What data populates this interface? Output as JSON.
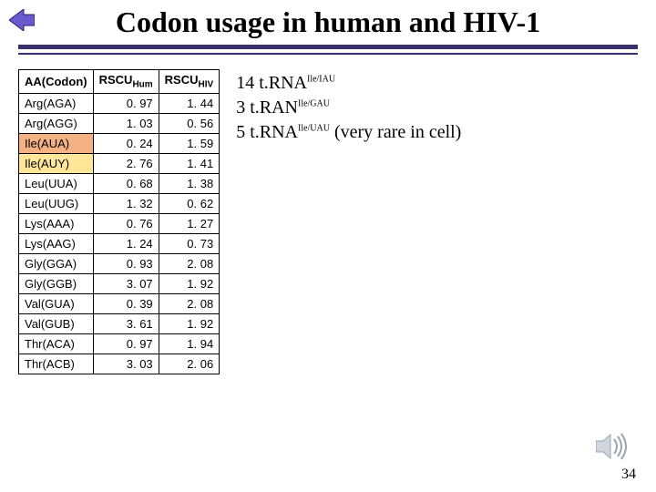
{
  "title": "Codon usage in human and HIV-1",
  "slide_number": "34",
  "colors": {
    "rule": "#3a2e6e",
    "highlight_orange": "#f4b183",
    "highlight_yellow": "#ffe699",
    "text": "#000000",
    "background": "#ffffff"
  },
  "table": {
    "columns": [
      "AA(Codon)",
      "RSCU_Hum",
      "RSCU_HIV"
    ],
    "rows": [
      {
        "aa": "Arg(AGA)",
        "hum": "0. 97",
        "hiv": "1. 44",
        "hl": ""
      },
      {
        "aa": "Arg(AGG)",
        "hum": "1. 03",
        "hiv": "0. 56",
        "hl": ""
      },
      {
        "aa": "Ile(AUA)",
        "hum": "0. 24",
        "hiv": "1. 59",
        "hl": "orange"
      },
      {
        "aa": "Ile(AUY)",
        "hum": "2. 76",
        "hiv": "1. 41",
        "hl": "yellow"
      },
      {
        "aa": "Leu(UUA)",
        "hum": "0. 68",
        "hiv": "1. 38",
        "hl": ""
      },
      {
        "aa": "Leu(UUG)",
        "hum": "1. 32",
        "hiv": "0. 62",
        "hl": ""
      },
      {
        "aa": "Lys(AAA)",
        "hum": "0. 76",
        "hiv": "1. 27",
        "hl": ""
      },
      {
        "aa": "Lys(AAG)",
        "hum": "1. 24",
        "hiv": "0. 73",
        "hl": ""
      },
      {
        "aa": "Gly(GGA)",
        "hum": "0. 93",
        "hiv": "2. 08",
        "hl": ""
      },
      {
        "aa": "Gly(GGB)",
        "hum": "3. 07",
        "hiv": "1. 92",
        "hl": ""
      },
      {
        "aa": "Val(GUA)",
        "hum": "0. 39",
        "hiv": "2. 08",
        "hl": ""
      },
      {
        "aa": "Val(GUB)",
        "hum": "3. 61",
        "hiv": "1. 92",
        "hl": ""
      },
      {
        "aa": "Thr(ACA)",
        "hum": "0. 97",
        "hiv": "1. 94",
        "hl": ""
      },
      {
        "aa": "Thr(ACB)",
        "hum": "3. 03",
        "hiv": "2. 06",
        "hl": ""
      }
    ]
  },
  "notes": {
    "line1_count": "14",
    "line1_body": " t.RNA",
    "line1_sup": "Ile/IAU",
    "line2_count": "3",
    "line2_body": " t.RAN",
    "line2_sup": "Ile/GAU",
    "line3_count": "5",
    "line3_body": " t.RNA",
    "line3_sup": "Ile/UAU",
    "line3_tail": " (very rare in cell)"
  },
  "header_sub1": "Hum",
  "header_sub2": "HIV",
  "header_prefix": "RSCU"
}
